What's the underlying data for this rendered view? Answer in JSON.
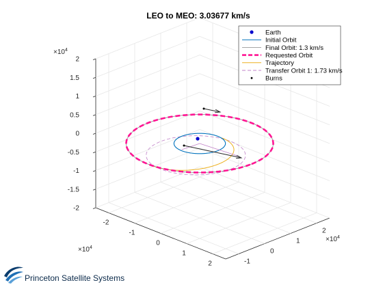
{
  "chart_data": {
    "type": "line",
    "projection": "3d",
    "title": "LEO to MEO: 3.03677 km/s",
    "x_exponent": "×10",
    "x_exponent_power": "4",
    "y_exponent": "×10",
    "y_exponent_power": "4",
    "z_exponent": "×10",
    "z_exponent_power": "4",
    "xlim": [
      -2.5,
      2.5
    ],
    "ylim": [
      -1.5,
      2.5
    ],
    "zlim": [
      -2,
      2
    ],
    "x_ticks": [
      "-2",
      "-1",
      "0",
      "1",
      "2"
    ],
    "y_ticks": [
      "-1",
      "0",
      "1",
      "2"
    ],
    "z_ticks": [
      "-2",
      "-1.5",
      "-1",
      "-0.5",
      "0",
      "0.5",
      "1",
      "1.5",
      "2"
    ],
    "grid": true,
    "legend_position": "top-right",
    "series": [
      {
        "name": "Earth",
        "style": "marker",
        "color": "#0000cc",
        "points": [
          [
            0,
            0,
            0
          ]
        ]
      },
      {
        "name": "Initial Orbit",
        "style": "solid",
        "color": "#0072bd",
        "shape": "circle",
        "radius": 0.7
      },
      {
        "name": "Final Orbit: 1.3 km/s",
        "style": "solid-thin",
        "color": "#888888",
        "shape": "circle",
        "radius": 2.0
      },
      {
        "name": "Requested Orbit",
        "style": "dashed-thick",
        "color": "#ff1493",
        "shape": "circle",
        "radius": 2.0
      },
      {
        "name": "Trajectory",
        "style": "solid",
        "color": "#edb120",
        "shape": "half-ellipse"
      },
      {
        "name": "Transfer Orbit 1: 1.73 km/s",
        "style": "dashed",
        "color": "#c080c8",
        "shape": "ellipse"
      },
      {
        "name": "Burns",
        "style": "marker-dot",
        "color": "#000000",
        "points": [
          [
            -0.1,
            0.7,
            0
          ],
          [
            0.1,
            -2.0,
            0
          ]
        ]
      }
    ],
    "burn_arrows": 2
  },
  "footer": {
    "brand": "Princeton Satellite Systems",
    "logo_icon": "princeton-swoosh-logo"
  }
}
